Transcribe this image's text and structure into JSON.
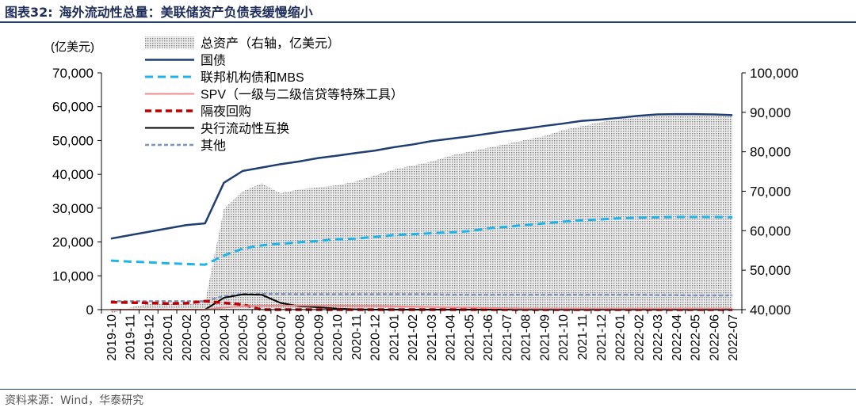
{
  "header": {
    "figure_no": "图表32:",
    "title": "海外流动性总量：美联储资产负债表缓慢缩小"
  },
  "source": "资料来源：Wind，华泰研究",
  "colors": {
    "total_assets": "#7f7f7f",
    "treasuries": "#1f3f73",
    "agency_mbs": "#1fb4e8",
    "spv": "#f08a8a",
    "repo": "#c00000",
    "swap": "#000000",
    "other": "#7d95b8",
    "rule": "#1f3f73"
  },
  "chart_data": {
    "type": "area",
    "left_unit": "(亿美元)",
    "ylim": [
      0,
      70000
    ],
    "yticks": [
      "0",
      "10,000",
      "20,000",
      "30,000",
      "40,000",
      "50,000",
      "60,000",
      "70,000"
    ],
    "y2lim": [
      40000,
      100000
    ],
    "y2ticks": [
      "40,000",
      "50,000",
      "60,000",
      "70,000",
      "80,000",
      "90,000",
      "100,000"
    ],
    "categories": [
      "2019-10",
      "2019-11",
      "2019-12",
      "2020-01",
      "2020-02",
      "2020-03",
      "2020-04",
      "2020-05",
      "2020-06",
      "2020-07",
      "2020-08",
      "2020-09",
      "2020-10",
      "2020-11",
      "2020-12",
      "2021-01",
      "2021-02",
      "2021-03",
      "2021-04",
      "2021-05",
      "2021-06",
      "2021-07",
      "2021-08",
      "2021-09",
      "2021-10",
      "2021-11",
      "2021-12",
      "2022-01",
      "2022-02",
      "2022-03",
      "2022-04",
      "2022-05",
      "2022-06",
      "2022-07"
    ],
    "series": [
      {
        "name": "总资产（右轴，亿美元）",
        "axis": "right",
        "style": "area",
        "values": [
          39000,
          40500,
          41500,
          41800,
          41500,
          42000,
          65500,
          70000,
          72000,
          69500,
          70500,
          71000,
          71500,
          72500,
          74000,
          75500,
          76500,
          77500,
          79000,
          80000,
          81000,
          82000,
          83000,
          84000,
          85500,
          86500,
          87500,
          88200,
          88800,
          89000,
          89300,
          89300,
          89200,
          89000
        ]
      },
      {
        "name": "国债",
        "axis": "left",
        "style": "line",
        "values": [
          21000,
          22000,
          23000,
          24000,
          25000,
          25500,
          37500,
          41000,
          42000,
          43000,
          43800,
          44800,
          45500,
          46300,
          47000,
          48000,
          48800,
          49800,
          50500,
          51200,
          52000,
          52800,
          53500,
          54300,
          55000,
          55800,
          56200,
          56700,
          57300,
          57700,
          57800,
          57800,
          57700,
          57500
        ]
      },
      {
        "name": "联邦机构债和MBS",
        "axis": "left",
        "style": "dash",
        "values": [
          14500,
          14200,
          14000,
          13700,
          13500,
          13300,
          16000,
          18000,
          19000,
          19500,
          19900,
          20300,
          20800,
          21000,
          21500,
          22000,
          22300,
          22600,
          22800,
          23200,
          24000,
          24500,
          25000,
          25500,
          26000,
          26400,
          26700,
          27000,
          27200,
          27300,
          27400,
          27400,
          27400,
          27300
        ]
      },
      {
        "name": "SPV（一级与二级信贷等特殊工具）",
        "axis": "left",
        "style": "line",
        "values": [
          0,
          0,
          0,
          0,
          0,
          0,
          600,
          1000,
          1200,
          1200,
          1200,
          1200,
          1200,
          1100,
          1100,
          1000,
          900,
          800,
          700,
          600,
          500,
          400,
          300,
          300,
          300,
          300,
          300,
          300,
          300,
          300,
          300,
          300,
          300,
          300
        ]
      },
      {
        "name": "隔夜回购",
        "axis": "left",
        "style": "dash",
        "values": [
          2200,
          2100,
          2000,
          1800,
          1900,
          2500,
          2000,
          1500,
          0,
          0,
          0,
          0,
          0,
          0,
          0,
          0,
          0,
          0,
          0,
          0,
          0,
          0,
          0,
          0,
          0,
          0,
          0,
          0,
          0,
          0,
          0,
          0,
          0,
          0
        ]
      },
      {
        "name": "央行流动性互换",
        "axis": "left",
        "style": "line",
        "values": [
          0,
          0,
          0,
          0,
          0,
          0,
          3500,
          4500,
          4400,
          2000,
          1000,
          700,
          300,
          100,
          0,
          0,
          0,
          0,
          0,
          0,
          0,
          0,
          0,
          0,
          0,
          0,
          0,
          0,
          0,
          0,
          0,
          0,
          0,
          0
        ]
      },
      {
        "name": "其他",
        "axis": "left",
        "style": "dash",
        "values": [
          2500,
          2500,
          2500,
          2500,
          2500,
          2500,
          4000,
          4600,
          4700,
          4600,
          4500,
          4500,
          4500,
          4500,
          4500,
          4500,
          4500,
          4500,
          4400,
          4400,
          4400,
          4400,
          4400,
          4400,
          4400,
          4400,
          4400,
          4400,
          4400,
          4300,
          4300,
          4200,
          4200,
          4200
        ]
      }
    ]
  }
}
